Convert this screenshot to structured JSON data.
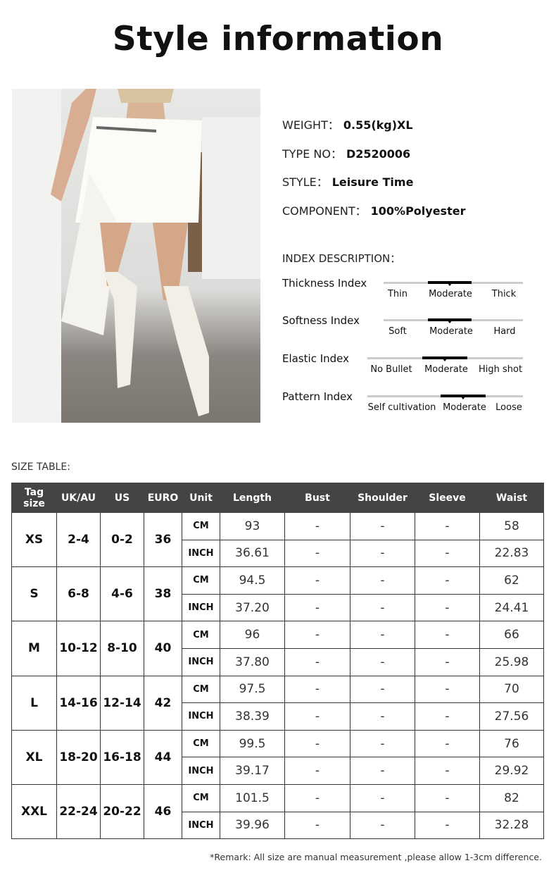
{
  "title": "Style information",
  "info": [
    {
      "key": "WEIGHT：",
      "value": "0.55(kg)XL"
    },
    {
      "key": "TYPE NO：",
      "value": "D2520006"
    },
    {
      "key": "STYLE：",
      "value": "Leisure Time"
    },
    {
      "key": "COMPONENT：",
      "value": "100%Polyester"
    }
  ],
  "index_heading": "INDEX DESCRIPTION：",
  "indexes": [
    {
      "label": "Thickness Index",
      "options": [
        "Thin",
        "Moderate",
        "Thick"
      ],
      "selected": "Moderate"
    },
    {
      "label": "Softness Index",
      "options": [
        "Soft",
        "Moderate",
        "Hard"
      ],
      "selected": "Moderate"
    },
    {
      "label": "Elastic Index",
      "options": [
        "No Bullet",
        "Moderate",
        "High shot"
      ],
      "selected": "Moderate"
    },
    {
      "label": "Pattern Index",
      "options": [
        "Self cultivation",
        "Moderate",
        "Loose"
      ],
      "selected": "Moderate"
    }
  ],
  "size_table_heading": "SIZE TABLE:",
  "size_table": {
    "headers": [
      "Tag size",
      "UK/AU",
      "US",
      "EURO",
      "Unit",
      "Length",
      "Bust",
      "Shoulder",
      "Sleeve",
      "Waist"
    ],
    "rows": [
      {
        "tag": "XS",
        "uk": "2-4",
        "us": "0-2",
        "euro": "36",
        "cm": [
          "93",
          "-",
          "-",
          "-",
          "58"
        ],
        "inch": [
          "36.61",
          "-",
          "-",
          "-",
          "22.83"
        ]
      },
      {
        "tag": "S",
        "uk": "6-8",
        "us": "4-6",
        "euro": "38",
        "cm": [
          "94.5",
          "-",
          "-",
          "-",
          "62"
        ],
        "inch": [
          "37.20",
          "-",
          "-",
          "-",
          "24.41"
        ]
      },
      {
        "tag": "M",
        "uk": "10-12",
        "us": "8-10",
        "euro": "40",
        "cm": [
          "96",
          "-",
          "-",
          "-",
          "66"
        ],
        "inch": [
          "37.80",
          "-",
          "-",
          "-",
          "25.98"
        ]
      },
      {
        "tag": "L",
        "uk": "14-16",
        "us": "12-14",
        "euro": "42",
        "cm": [
          "97.5",
          "-",
          "-",
          "-",
          "70"
        ],
        "inch": [
          "38.39",
          "-",
          "-",
          "-",
          "27.56"
        ]
      },
      {
        "tag": "XL",
        "uk": "18-20",
        "us": "16-18",
        "euro": "44",
        "cm": [
          "99.5",
          "-",
          "-",
          "-",
          "76"
        ],
        "inch": [
          "39.17",
          "-",
          "-",
          "-",
          "29.92"
        ]
      },
      {
        "tag": "XXL",
        "uk": "22-24",
        "us": "20-22",
        "euro": "46",
        "cm": [
          "101.5",
          "-",
          "-",
          "-",
          "82"
        ],
        "inch": [
          "39.96",
          "-",
          "-",
          "-",
          "32.28"
        ]
      }
    ],
    "unit_cm": "CM",
    "unit_inch": "INCH"
  },
  "remark": "*Remark: All size are manual measurement ,please allow 1-3cm difference."
}
